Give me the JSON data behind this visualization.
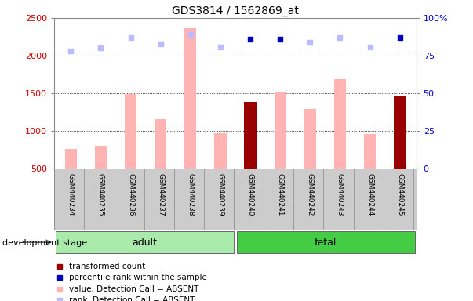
{
  "title": "GDS3814 / 1562869_at",
  "samples": [
    "GSM440234",
    "GSM440235",
    "GSM440236",
    "GSM440237",
    "GSM440238",
    "GSM440239",
    "GSM440240",
    "GSM440241",
    "GSM440242",
    "GSM440243",
    "GSM440244",
    "GSM440245"
  ],
  "bar_values": [
    760,
    800,
    1490,
    1160,
    2360,
    970,
    1390,
    1510,
    1290,
    1690,
    960,
    1470
  ],
  "bar_colors": [
    "#ffb3b3",
    "#ffb3b3",
    "#ffb3b3",
    "#ffb3b3",
    "#ffb3b3",
    "#ffb3b3",
    "#990000",
    "#ffb3b3",
    "#ffb3b3",
    "#ffb3b3",
    "#ffb3b3",
    "#990000"
  ],
  "rank_values": [
    78,
    80,
    87,
    83,
    89,
    81,
    86,
    86,
    84,
    87,
    81,
    87
  ],
  "rank_colors": [
    "#bbbbff",
    "#bbbbff",
    "#bbbbff",
    "#bbbbff",
    "#bbbbff",
    "#bbbbff",
    "#0000bb",
    "#0000bb",
    "#bbbbff",
    "#bbbbff",
    "#bbbbff",
    "#0000bb"
  ],
  "ylim_left": [
    500,
    2500
  ],
  "ylim_right": [
    0,
    100
  ],
  "yticks_left": [
    500,
    1000,
    1500,
    2000,
    2500
  ],
  "yticks_right": [
    0,
    25,
    50,
    75,
    100
  ],
  "ytick_right_labels": [
    "0",
    "25",
    "50",
    "75",
    "100%"
  ],
  "grid_lines": [
    1000,
    1500,
    2000
  ],
  "adult_samples": 6,
  "fetal_samples": 6,
  "bg_color": "#ffffff",
  "left_axis_color": "#cc0000",
  "right_axis_color": "#0000cc",
  "legend_items": [
    {
      "label": "transformed count",
      "color": "#990000"
    },
    {
      "label": "percentile rank within the sample",
      "color": "#0000bb"
    },
    {
      "label": "value, Detection Call = ABSENT",
      "color": "#ffb3b3"
    },
    {
      "label": "rank, Detection Call = ABSENT",
      "color": "#bbbbff"
    }
  ],
  "development_stage_label": "development stage",
  "adult_label": "adult",
  "fetal_label": "fetal",
  "adult_color": "#aaeaaa",
  "fetal_color": "#44cc44",
  "ticklabel_area_color": "#cccccc",
  "bar_width": 0.4
}
